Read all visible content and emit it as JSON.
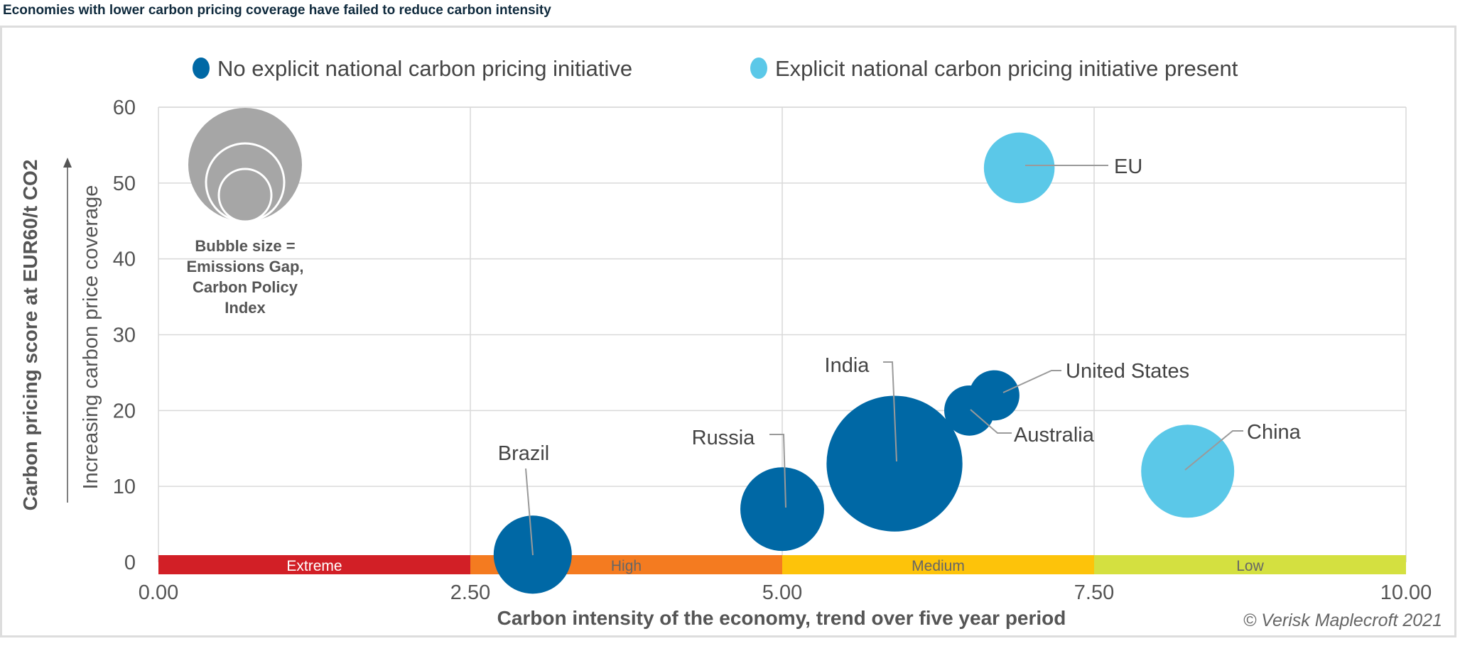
{
  "title": "Economies with lower carbon pricing coverage have failed to reduce carbon intensity",
  "copyright": "© Verisk Maplecroft 2021",
  "chart_data": {
    "type": "bubble",
    "xlabel": "Carbon intensity of the economy, trend over five year period",
    "ylabel": "Carbon pricing score at EUR60/t CO2",
    "ylabel_secondary": "Increasing carbon price coverage",
    "xlim": [
      0,
      10
    ],
    "ylim": [
      0,
      60
    ],
    "xticks": [
      "0.00",
      "2.50",
      "5.00",
      "7.50",
      "10.00"
    ],
    "yticks": [
      "0",
      "10",
      "20",
      "30",
      "40",
      "50",
      "60"
    ],
    "grid": true,
    "legend_placement": "top",
    "series": [
      {
        "name": "No explicit national carbon pricing initiative",
        "color": "#0068a5"
      },
      {
        "name": "Explicit national carbon pricing initiative present",
        "color": "#5bc8e8"
      }
    ],
    "bubble_legend": "Bubble size = Emissions Gap, Carbon Policy Index",
    "bubble_legend_lines": [
      "Bubble size =",
      "Emissions Gap,",
      "Carbon Policy",
      "Index"
    ],
    "bands": [
      {
        "label": "Extreme",
        "from": 0,
        "to": 2.5,
        "color": "#d21f26"
      },
      {
        "label": "High",
        "from": 2.5,
        "to": 5.0,
        "color": "#f47b20"
      },
      {
        "label": "Medium",
        "from": 5.0,
        "to": 7.5,
        "color": "#fdc30a"
      },
      {
        "label": "Low",
        "from": 7.5,
        "to": 10.0,
        "color": "#d4e040"
      }
    ],
    "points": [
      {
        "label": "Brazil",
        "x": 3.0,
        "y": 1,
        "size": 42,
        "series": 0
      },
      {
        "label": "Russia",
        "x": 5.0,
        "y": 7,
        "size": 45,
        "series": 0
      },
      {
        "label": "India",
        "x": 5.9,
        "y": 13,
        "size": 73,
        "series": 0
      },
      {
        "label": "Australia",
        "x": 6.5,
        "y": 20,
        "size": 27,
        "series": 0
      },
      {
        "label": "United States",
        "x": 6.7,
        "y": 22,
        "size": 27,
        "series": 0
      },
      {
        "label": "EU",
        "x": 6.9,
        "y": 52,
        "size": 38,
        "series": 1
      },
      {
        "label": "China",
        "x": 8.25,
        "y": 12,
        "size": 50,
        "series": 1
      }
    ]
  }
}
